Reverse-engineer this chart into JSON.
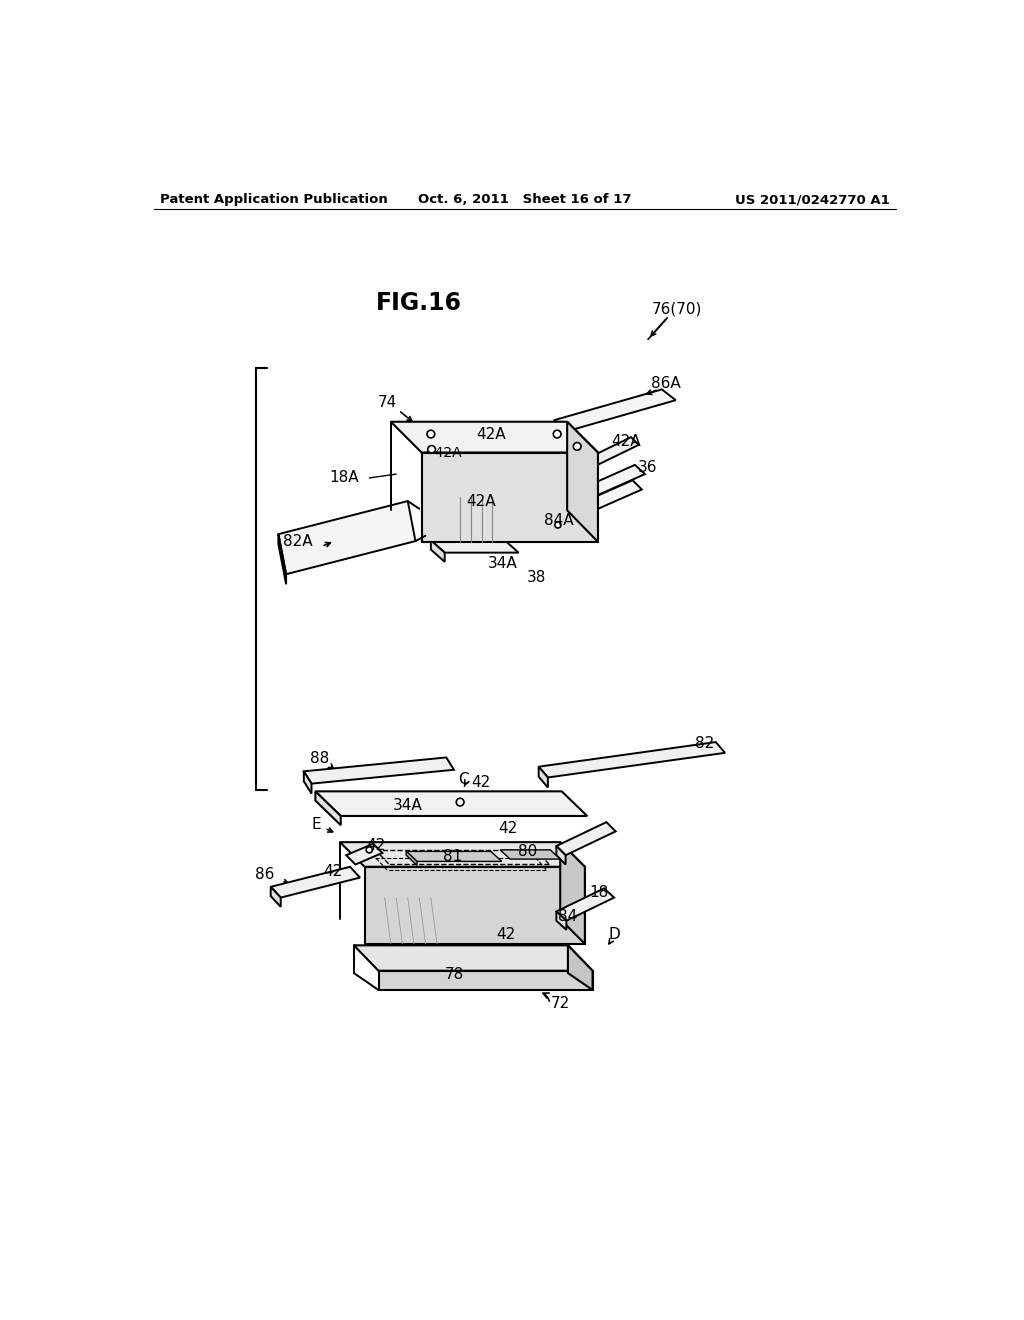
{
  "background_color": "#ffffff",
  "header_left": "Patent Application Publication",
  "header_center": "Oct. 6, 2011   Sheet 16 of 17",
  "header_right": "US 2011/0242770 A1"
}
